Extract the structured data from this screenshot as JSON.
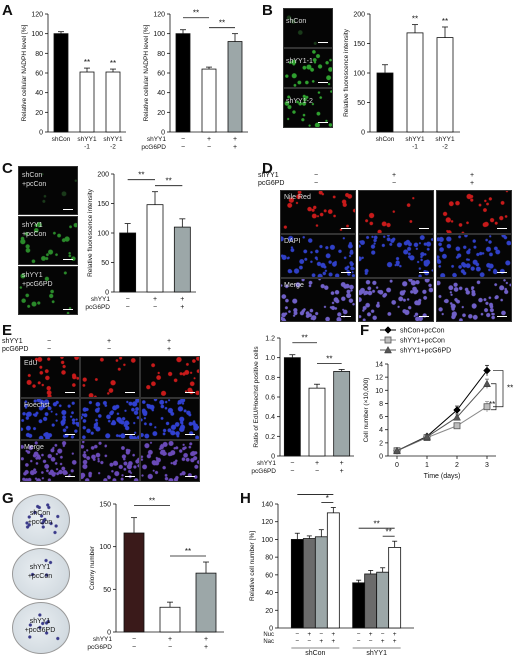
{
  "panels": {
    "A": "A",
    "B": "B",
    "C": "C",
    "D": "D",
    "E": "E",
    "F": "F",
    "G": "G",
    "H": "H"
  },
  "colors": {
    "black": "#000000",
    "white": "#ffffff",
    "gray": "#9ca7a8",
    "dark": "#3a1a1a",
    "mid": "#6b6b6b",
    "red": "#c81a1a",
    "blue": "#1b2a9a",
    "green": "#1e6a1e"
  },
  "img_labels": {
    "b": [
      "shCon",
      "shYY1-1",
      "shYY1-2"
    ],
    "c": [
      "shCon\n+pcCon",
      "shYY1\n+pcCon",
      "shYY1\n+pcG6PD"
    ],
    "d_rows": [
      "Nile Red",
      "DAPI",
      "Merge"
    ],
    "e_rows": [
      "EdU",
      "Hoechst",
      "Merge"
    ],
    "g_rows": [
      "shCon\n+pcCon",
      "shYY1\n+pcCon",
      "shYY1\n+pcG6PD"
    ]
  },
  "img_headers": {
    "shYY1": "shYY1",
    "pcG6PD": "pcG6PD",
    "signs": [
      "−",
      "+",
      "+"
    ],
    "signs2": [
      "−",
      "−",
      "+"
    ]
  },
  "chart_data": [
    {
      "id": "A1",
      "type": "bar",
      "ylabel": "Relative cellular NADPH level [%]",
      "ylim": [
        0,
        120
      ],
      "yticks": [
        0,
        20,
        40,
        60,
        80,
        100,
        120
      ],
      "categories": [
        "shCon",
        "shYY1\n-1",
        "shYY1\n-2"
      ],
      "values": [
        100,
        61,
        61
      ],
      "errors": [
        2,
        4,
        3
      ],
      "fills": [
        "#000000",
        "#ffffff",
        "#ffffff"
      ],
      "sig": [
        "",
        "**",
        "**"
      ]
    },
    {
      "id": "A2",
      "type": "bar",
      "ylabel": "Relative cellular NADPH level [%]",
      "ylim": [
        0,
        120
      ],
      "yticks": [
        0,
        20,
        40,
        60,
        80,
        100,
        120
      ],
      "factors": [
        {
          "name": "shYY1",
          "signs": [
            "−",
            "+",
            "+"
          ]
        },
        {
          "name": "pcG6PD",
          "signs": [
            "−",
            "−",
            "+"
          ]
        }
      ],
      "values": [
        100,
        64,
        92
      ],
      "errors": [
        4,
        2,
        8
      ],
      "fills": [
        "#000000",
        "#ffffff",
        "#9ca7a8"
      ],
      "brackets": [
        {
          "from": 0,
          "to": 1,
          "label": "**"
        },
        {
          "from": 1,
          "to": 2,
          "label": "**"
        }
      ]
    },
    {
      "id": "B",
      "type": "bar",
      "ylabel": "Relative fluorescence intensity",
      "ylim": [
        0,
        200
      ],
      "yticks": [
        0,
        50,
        100,
        150,
        200
      ],
      "categories": [
        "shCon",
        "shYY1\n-1",
        "shYY1\n-2"
      ],
      "values": [
        100,
        168,
        160
      ],
      "errors": [
        14,
        14,
        18
      ],
      "fills": [
        "#000000",
        "#ffffff",
        "#ffffff"
      ],
      "sig": [
        "",
        "**",
        "**"
      ]
    },
    {
      "id": "C",
      "type": "bar",
      "ylabel": "Relative fluorescence intensity",
      "ylim": [
        0,
        200
      ],
      "yticks": [
        0,
        50,
        100,
        150,
        200
      ],
      "factors": [
        {
          "name": "shYY1",
          "signs": [
            "−",
            "+",
            "+"
          ]
        },
        {
          "name": "pcG6PD",
          "signs": [
            "−",
            "−",
            "+"
          ]
        }
      ],
      "values": [
        100,
        148,
        110
      ],
      "errors": [
        16,
        22,
        14
      ],
      "fills": [
        "#000000",
        "#ffffff",
        "#9ca7a8"
      ],
      "brackets": [
        {
          "from": 0,
          "to": 1,
          "label": "**"
        },
        {
          "from": 1,
          "to": 2,
          "label": "**"
        }
      ]
    },
    {
      "id": "E",
      "type": "bar",
      "ylabel": "Ratio of EdU/Hoechst positive cells",
      "ylim": [
        0,
        1.2
      ],
      "yticks": [
        0,
        0.2,
        0.4,
        0.6,
        0.8,
        1.0,
        1.2
      ],
      "ytick_labels": [
        "0",
        "0.2",
        "0.4",
        "0.6",
        "0.8",
        "1.0",
        "1.2"
      ],
      "factors": [
        {
          "name": "shYY1",
          "signs": [
            "−",
            "+",
            "+"
          ]
        },
        {
          "name": "pcG6PD",
          "signs": [
            "−",
            "−",
            "+"
          ]
        }
      ],
      "values": [
        1.0,
        0.69,
        0.86
      ],
      "errors": [
        0.03,
        0.04,
        0.02
      ],
      "fills": [
        "#000000",
        "#ffffff",
        "#9ca7a8"
      ],
      "brackets": [
        {
          "from": 0,
          "to": 1,
          "label": "**"
        },
        {
          "from": 1,
          "to": 2,
          "label": "**"
        }
      ]
    },
    {
      "id": "F",
      "type": "line",
      "ylabel": "Cell number (×10,000)",
      "xlabel": "Time (days)",
      "x": [
        0,
        1,
        2,
        3
      ],
      "xlim": [
        -0.3,
        3.3
      ],
      "ylim": [
        0,
        14
      ],
      "yticks": [
        0,
        2,
        4,
        6,
        8,
        10,
        12,
        14
      ],
      "series": [
        {
          "name": "shCon+pcCon",
          "values": [
            0.8,
            3.0,
            7.0,
            13.0
          ],
          "errors": [
            0.1,
            0.2,
            0.6,
            0.8
          ],
          "color": "#000000",
          "marker": "diamond"
        },
        {
          "name": "shYY1+pcCon",
          "values": [
            0.8,
            2.8,
            4.6,
            7.5
          ],
          "errors": [
            0.1,
            0.2,
            0.4,
            0.8
          ],
          "color": "#8a8a8a",
          "marker": "square"
        },
        {
          "name": "shYY1+pcG6PD",
          "values": [
            0.8,
            2.9,
            5.9,
            11.0
          ],
          "errors": [
            0.1,
            0.2,
            0.5,
            0.7
          ],
          "color": "#555555",
          "marker": "triangle"
        }
      ],
      "brackets": [
        {
          "label": "**"
        },
        {
          "label": "**"
        }
      ]
    },
    {
      "id": "G",
      "type": "bar",
      "ylabel": "Colony number",
      "ylim": [
        0,
        150
      ],
      "yticks": [
        0,
        50,
        100,
        150
      ],
      "factors": [
        {
          "name": "shYY1",
          "signs": [
            "−",
            "+",
            "+"
          ]
        },
        {
          "name": "pcG6PD",
          "signs": [
            "−",
            "−",
            "+"
          ]
        }
      ],
      "values": [
        116,
        29,
        69
      ],
      "errors": [
        18,
        6,
        13
      ],
      "fills": [
        "#3a1a1a",
        "#ffffff",
        "#9ca7a8"
      ],
      "brackets": [
        {
          "from": 0,
          "to": 1,
          "label": "**"
        },
        {
          "from": 1,
          "to": 2,
          "label": "**"
        }
      ]
    },
    {
      "id": "H",
      "type": "bar",
      "ylabel": "Relative cell number [%]",
      "ylim": [
        0,
        140
      ],
      "yticks": [
        0,
        20,
        40,
        60,
        80,
        100,
        120,
        140
      ],
      "factors": [
        {
          "name": "Nuc",
          "signs": [
            "−",
            "+",
            "−",
            "+"
          ]
        },
        {
          "name": "Nac",
          "signs": [
            "−",
            "−",
            "+",
            "+"
          ]
        }
      ],
      "groups": [
        {
          "name": "shCon",
          "values": [
            100,
            101,
            103,
            130
          ],
          "errors": [
            7,
            3,
            8,
            6
          ]
        },
        {
          "name": "shYY1",
          "values": [
            51,
            61,
            63,
            91
          ],
          "errors": [
            3,
            4,
            5,
            7
          ]
        }
      ],
      "fills": [
        "#000000",
        "#6b6b6b",
        "#9ca7a8",
        "#ffffff"
      ],
      "sig": [
        {
          "group": 0,
          "brackets": [
            "*",
            "**"
          ]
        },
        {
          "group": 1,
          "brackets": [
            "**",
            "**"
          ]
        }
      ]
    }
  ]
}
